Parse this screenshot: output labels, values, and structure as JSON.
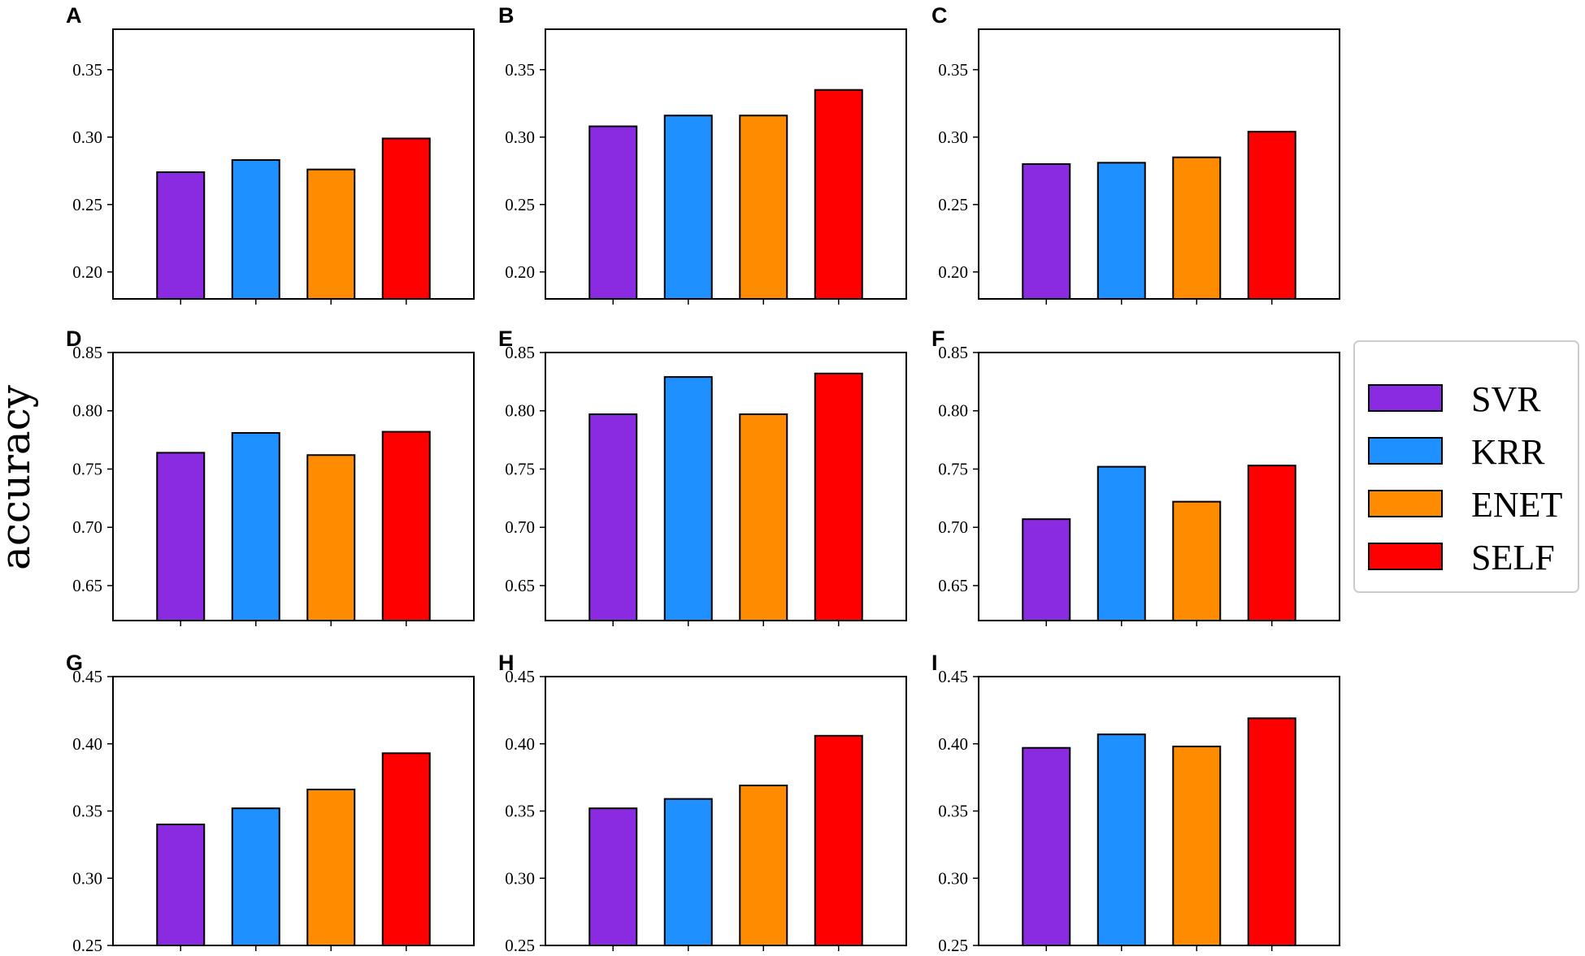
{
  "figure": {
    "ylabel": "accuracy",
    "colors": {
      "SVR": "#8a2be2",
      "KRR": "#1e90ff",
      "ENET": "#ff8c00",
      "SELF": "#ff0000"
    }
  },
  "chart_data": [
    {
      "panel": "A",
      "type": "bar",
      "categories": [
        "SVR",
        "KRR",
        "ENET",
        "SELF"
      ],
      "values": [
        0.274,
        0.283,
        0.276,
        0.299
      ],
      "ylim": [
        0.18,
        0.38
      ],
      "yticks": [
        "0.20",
        "0.25",
        "0.30",
        "0.35"
      ],
      "xlabel": "",
      "ylabel": "accuracy"
    },
    {
      "panel": "B",
      "type": "bar",
      "categories": [
        "SVR",
        "KRR",
        "ENET",
        "SELF"
      ],
      "values": [
        0.308,
        0.316,
        0.316,
        0.335
      ],
      "ylim": [
        0.18,
        0.38
      ],
      "yticks": [
        "0.20",
        "0.25",
        "0.30",
        "0.35"
      ],
      "xlabel": "",
      "ylabel": "accuracy"
    },
    {
      "panel": "C",
      "type": "bar",
      "categories": [
        "SVR",
        "KRR",
        "ENET",
        "SELF"
      ],
      "values": [
        0.28,
        0.281,
        0.285,
        0.304
      ],
      "ylim": [
        0.18,
        0.38
      ],
      "yticks": [
        "0.20",
        "0.25",
        "0.30",
        "0.35"
      ],
      "xlabel": "",
      "ylabel": "accuracy"
    },
    {
      "panel": "D",
      "type": "bar",
      "categories": [
        "SVR",
        "KRR",
        "ENET",
        "SELF"
      ],
      "values": [
        0.764,
        0.781,
        0.762,
        0.782
      ],
      "ylim": [
        0.62,
        0.85
      ],
      "yticks": [
        "0.65",
        "0.70",
        "0.75",
        "0.80",
        "0.85"
      ],
      "xlabel": "",
      "ylabel": "accuracy"
    },
    {
      "panel": "E",
      "type": "bar",
      "categories": [
        "SVR",
        "KRR",
        "ENET",
        "SELF"
      ],
      "values": [
        0.797,
        0.829,
        0.797,
        0.832
      ],
      "ylim": [
        0.62,
        0.85
      ],
      "yticks": [
        "0.65",
        "0.70",
        "0.75",
        "0.80",
        "0.85"
      ],
      "xlabel": "",
      "ylabel": "accuracy"
    },
    {
      "panel": "F",
      "type": "bar",
      "categories": [
        "SVR",
        "KRR",
        "ENET",
        "SELF"
      ],
      "values": [
        0.707,
        0.752,
        0.722,
        0.753
      ],
      "ylim": [
        0.62,
        0.85
      ],
      "yticks": [
        "0.65",
        "0.70",
        "0.75",
        "0.80",
        "0.85"
      ],
      "xlabel": "",
      "ylabel": "accuracy"
    },
    {
      "panel": "G",
      "type": "bar",
      "categories": [
        "SVR",
        "KRR",
        "ENET",
        "SELF"
      ],
      "values": [
        0.34,
        0.352,
        0.366,
        0.393
      ],
      "ylim": [
        0.25,
        0.45
      ],
      "yticks": [
        "0.25",
        "0.30",
        "0.35",
        "0.40",
        "0.45"
      ],
      "xlabel": "",
      "ylabel": "accuracy"
    },
    {
      "panel": "H",
      "type": "bar",
      "categories": [
        "SVR",
        "KRR",
        "ENET",
        "SELF"
      ],
      "values": [
        0.352,
        0.359,
        0.369,
        0.406
      ],
      "ylim": [
        0.25,
        0.45
      ],
      "yticks": [
        "0.25",
        "0.30",
        "0.35",
        "0.40",
        "0.45"
      ],
      "xlabel": "",
      "ylabel": "accuracy"
    },
    {
      "panel": "I",
      "type": "bar",
      "categories": [
        "SVR",
        "KRR",
        "ENET",
        "SELF"
      ],
      "values": [
        0.397,
        0.407,
        0.398,
        0.419
      ],
      "ylim": [
        0.25,
        0.45
      ],
      "yticks": [
        "0.25",
        "0.30",
        "0.35",
        "0.40",
        "0.45"
      ],
      "xlabel": "",
      "ylabel": "accuracy"
    }
  ],
  "legend": {
    "items": [
      {
        "label": "SVR",
        "color": "#8a2be2"
      },
      {
        "label": "KRR",
        "color": "#1e90ff"
      },
      {
        "label": "ENET",
        "color": "#ff8c00"
      },
      {
        "label": "SELF",
        "color": "#ff0000"
      }
    ]
  }
}
